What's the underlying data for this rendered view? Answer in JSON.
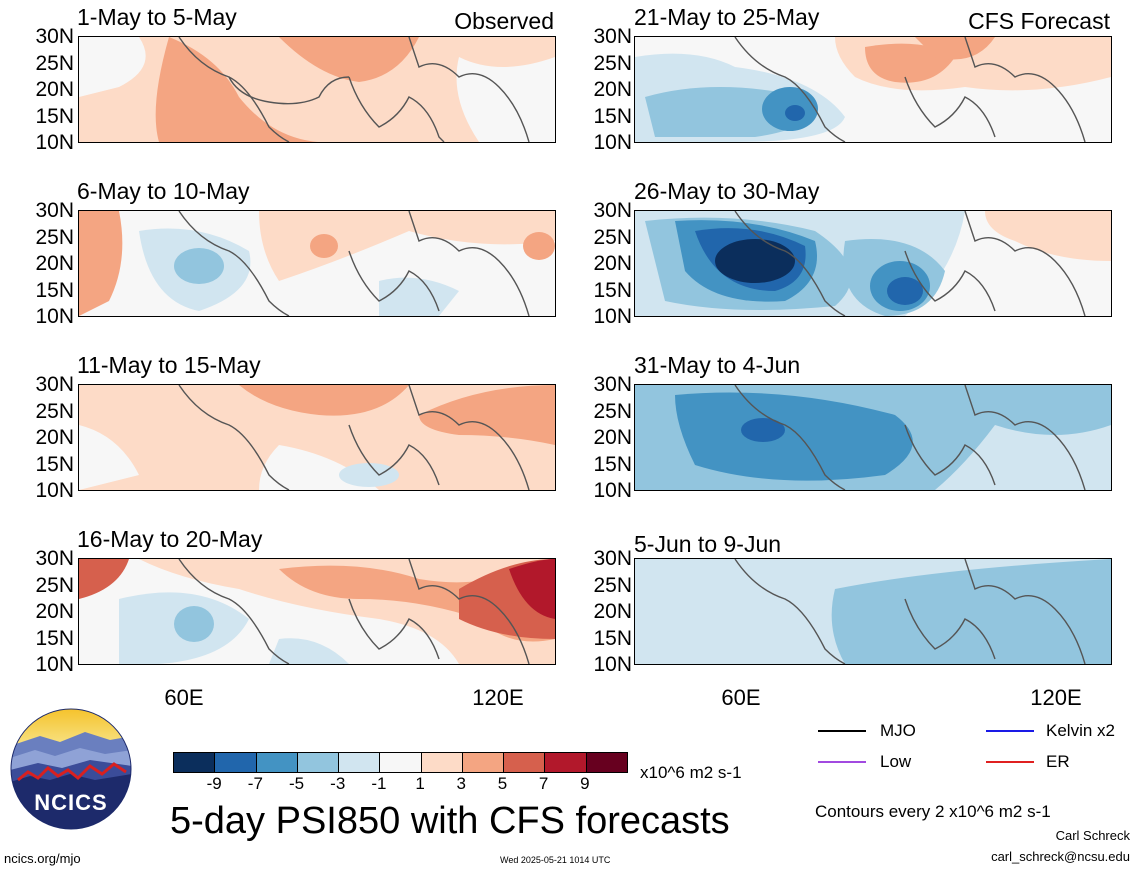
{
  "panels_left": [
    {
      "title": "1-May to 5-May",
      "tag": "Observed"
    },
    {
      "title": "6-May to 10-May",
      "tag": ""
    },
    {
      "title": "11-May to 15-May",
      "tag": ""
    },
    {
      "title": "16-May to 20-May",
      "tag": ""
    }
  ],
  "panels_right": [
    {
      "title": "21-May to 25-May",
      "tag": "CFS Forecast"
    },
    {
      "title": "26-May to 30-May",
      "tag": ""
    },
    {
      "title": "31-May to 4-Jun",
      "tag": ""
    },
    {
      "title": "5-Jun to 9-Jun",
      "tag": ""
    }
  ],
  "lat_labels": [
    "30N",
    "25N",
    "20N",
    "15N",
    "10N"
  ],
  "lon_labels": [
    "60E",
    "120E"
  ],
  "legend": {
    "items": [
      {
        "label": "MJO",
        "color": "#000000"
      },
      {
        "label": "Kelvin x2",
        "color": "#1a1ae6"
      },
      {
        "label": "Low",
        "color": "#a24ae0"
      },
      {
        "label": "ER",
        "color": "#e02020"
      }
    ]
  },
  "colorbar": {
    "labels": [
      "-9",
      "-7",
      "-5",
      "-3",
      "-1",
      "1",
      "3",
      "5",
      "7",
      "9"
    ],
    "colors": [
      "#0b2e5c",
      "#2166ac",
      "#4393c3",
      "#92c5de",
      "#d1e5f0",
      "#f7f7f7",
      "#fddbc7",
      "#f4a582",
      "#d6604d",
      "#b2182b",
      "#67001f"
    ],
    "units": "x10^6 m2 s-1"
  },
  "main_title": "5-day PSI850 with CFS forecasts",
  "contour_note": "Contours every 2 x10^6 m2 s-1",
  "author": "Carl Schreck",
  "email": "carl_schreck@ncsu.edu",
  "site": "ncics.org/mjo",
  "timestamp": "Wed 2025-05-21 1014 UTC",
  "logo_text": "NCICS"
}
